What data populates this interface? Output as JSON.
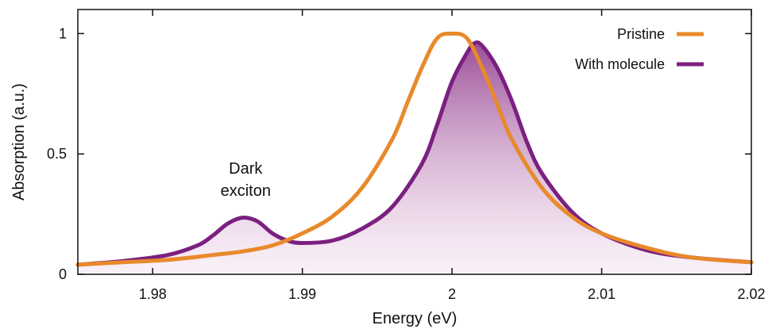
{
  "chart_data": {
    "type": "line",
    "xlabel": "Energy (eV)",
    "ylabel": "Absorption (a.u.)",
    "xlim": [
      1.975,
      2.02
    ],
    "ylim": [
      0,
      1.1
    ],
    "x_ticks": [
      1.98,
      1.99,
      2.0,
      2.01,
      2.02
    ],
    "x_tick_labels": [
      "1.98",
      "1.99",
      "2",
      "2.01",
      "2.02"
    ],
    "y_ticks": [
      0,
      0.5,
      1
    ],
    "y_tick_labels": [
      "0",
      "0.5",
      "1"
    ],
    "legend_position": "top-right",
    "grid": false,
    "annotations": [
      {
        "text_lines": [
          "Dark",
          "exciton"
        ],
        "x": 1.986,
        "y": 0.34
      }
    ],
    "series": [
      {
        "name": "Pristine",
        "color": "#e8892b",
        "x": [
          1.975,
          1.978,
          1.981,
          1.984,
          1.986,
          1.988,
          1.99,
          1.992,
          1.994,
          1.996,
          1.997,
          1.998,
          1.999,
          2.0,
          2.001,
          2.002,
          2.003,
          2.004,
          2.006,
          2.008,
          2.01,
          2.013,
          2.016,
          2.02
        ],
        "y": [
          0.04,
          0.05,
          0.06,
          0.08,
          0.095,
          0.12,
          0.17,
          0.24,
          0.36,
          0.56,
          0.71,
          0.86,
          0.98,
          1.0,
          0.98,
          0.86,
          0.71,
          0.56,
          0.36,
          0.24,
          0.17,
          0.11,
          0.07,
          0.05
        ]
      },
      {
        "name": "With molecule",
        "color": "#7b2080",
        "fill": true,
        "x": [
          1.975,
          1.978,
          1.981,
          1.983,
          1.984,
          1.985,
          1.986,
          1.987,
          1.988,
          1.989,
          1.99,
          1.992,
          1.994,
          1.996,
          1.998,
          1.999,
          2.0,
          2.001,
          2.0015,
          2.002,
          2.003,
          2.004,
          2.005,
          2.006,
          2.008,
          2.01,
          2.013,
          2.016,
          2.02
        ],
        "y": [
          0.04,
          0.055,
          0.08,
          0.12,
          0.16,
          0.21,
          0.235,
          0.22,
          0.17,
          0.14,
          0.13,
          0.14,
          0.19,
          0.28,
          0.46,
          0.62,
          0.8,
          0.92,
          0.96,
          0.95,
          0.86,
          0.72,
          0.55,
          0.42,
          0.26,
          0.17,
          0.1,
          0.07,
          0.05
        ]
      }
    ]
  }
}
